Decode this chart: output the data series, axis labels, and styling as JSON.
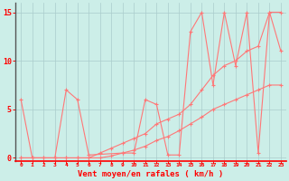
{
  "xlabel": "Vent moyen/en rafales ( km/h )",
  "bg_color": "#cceee8",
  "grid_color": "#aacccc",
  "line_color": "#ff7777",
  "xlim": [
    -0.5,
    23.5
  ],
  "ylim": [
    -0.3,
    16
  ],
  "yticks": [
    0,
    5,
    10,
    15
  ],
  "xticks": [
    0,
    1,
    2,
    3,
    4,
    5,
    6,
    7,
    8,
    9,
    10,
    11,
    12,
    13,
    14,
    15,
    16,
    17,
    18,
    19,
    20,
    21,
    22,
    23
  ],
  "line1_x": [
    0,
    1,
    2,
    3,
    4,
    5,
    6,
    7,
    8,
    9,
    10,
    11,
    12,
    13,
    14,
    15,
    16,
    17,
    18,
    19,
    20,
    21,
    22,
    23
  ],
  "line1_y": [
    0,
    0,
    0,
    0,
    0,
    0,
    0,
    0.5,
    1.0,
    1.5,
    2.0,
    2.5,
    3.5,
    4.0,
    4.5,
    5.5,
    7.0,
    8.5,
    9.5,
    10.0,
    11.0,
    11.5,
    15.0,
    15.0
  ],
  "line2_x": [
    0,
    1,
    3,
    4,
    5,
    6,
    9,
    10,
    11,
    12,
    13,
    14,
    15,
    16,
    17,
    18,
    19,
    20,
    21,
    22,
    23
  ],
  "line2_y": [
    6,
    0,
    0,
    7,
    6,
    0.3,
    0.5,
    0.5,
    6,
    5.5,
    0.3,
    0.3,
    13,
    15,
    7.5,
    15.0,
    9.5,
    15.0,
    0.5,
    15.0,
    11
  ],
  "line3_x": [
    0,
    1,
    2,
    3,
    4,
    5,
    6,
    7,
    8,
    9,
    10,
    11,
    12,
    13,
    14,
    15,
    16,
    17,
    18,
    19,
    20,
    21,
    22,
    23
  ],
  "line3_y": [
    0,
    0,
    0,
    0,
    0,
    0,
    0,
    0,
    0.2,
    0.5,
    0.8,
    1.2,
    1.8,
    2.2,
    2.8,
    3.5,
    4.2,
    5.0,
    5.5,
    6.0,
    6.5,
    7.0,
    7.5,
    7.5
  ]
}
